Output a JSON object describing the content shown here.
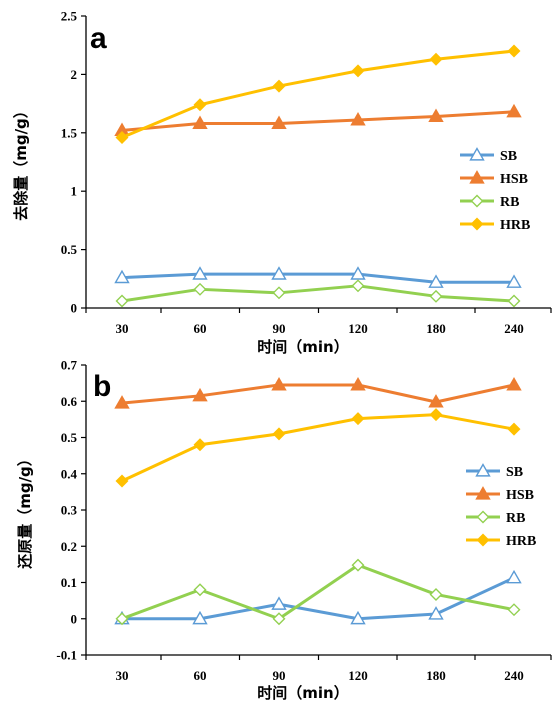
{
  "chart_data": [
    {
      "panel_label": "a",
      "type": "line",
      "categories": [
        "30",
        "60",
        "90",
        "120",
        "180",
        "240"
      ],
      "xlabel": "时间（min）",
      "ylabel": "去除量（mg/g）",
      "ylim": [
        0,
        2.5
      ],
      "yticks": [
        "0",
        "0.5",
        "1",
        "1.5",
        "2",
        "2.5"
      ],
      "grid": false,
      "legend_position": "right",
      "series": [
        {
          "name": "SB",
          "color": "#5b9bd5",
          "marker": "triangle-open",
          "values": [
            0.26,
            0.29,
            0.29,
            0.29,
            0.22,
            0.22
          ]
        },
        {
          "name": "HSB",
          "color": "#ed7d31",
          "marker": "triangle-filled",
          "values": [
            1.52,
            1.58,
            1.58,
            1.61,
            1.64,
            1.68
          ]
        },
        {
          "name": "RB",
          "color": "#92d050",
          "marker": "diamond-open",
          "values": [
            0.06,
            0.16,
            0.13,
            0.19,
            0.1,
            0.06
          ]
        },
        {
          "name": "HRB",
          "color": "#ffc000",
          "marker": "diamond-filled",
          "values": [
            1.46,
            1.74,
            1.9,
            2.03,
            2.13,
            2.2
          ]
        }
      ]
    },
    {
      "panel_label": "b",
      "type": "line",
      "categories": [
        "30",
        "60",
        "90",
        "120",
        "180",
        "240"
      ],
      "xlabel": "时间（min）",
      "ylabel": "还原量（mg/g）",
      "ylim": [
        -0.1,
        0.7
      ],
      "yticks": [
        "-0.1",
        "0",
        "0.1",
        "0.2",
        "0.3",
        "0.4",
        "0.5",
        "0.6",
        "0.7"
      ],
      "grid": false,
      "legend_position": "right",
      "series": [
        {
          "name": "SB",
          "color": "#5b9bd5",
          "marker": "triangle-open",
          "values": [
            0.0,
            0.0,
            0.04,
            0.0,
            0.013,
            0.113
          ]
        },
        {
          "name": "HSB",
          "color": "#ed7d31",
          "marker": "triangle-filled",
          "values": [
            0.595,
            0.615,
            0.645,
            0.645,
            0.598,
            0.645
          ]
        },
        {
          "name": "RB",
          "color": "#92d050",
          "marker": "diamond-open",
          "values": [
            0.0,
            0.08,
            0.0,
            0.148,
            0.067,
            0.025
          ]
        },
        {
          "name": "HRB",
          "color": "#ffc000",
          "marker": "diamond-filled",
          "values": [
            0.38,
            0.48,
            0.51,
            0.552,
            0.563,
            0.523
          ]
        }
      ]
    }
  ]
}
